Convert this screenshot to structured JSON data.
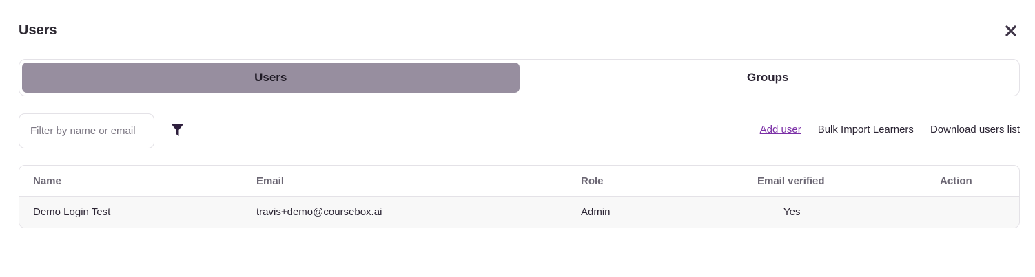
{
  "modal": {
    "title": "Users",
    "close_icon": "close-icon"
  },
  "tabs": [
    {
      "label": "Users",
      "active": true
    },
    {
      "label": "Groups",
      "active": false
    }
  ],
  "filter": {
    "placeholder": "Filter by name or email",
    "value": "",
    "icon": "filter-icon"
  },
  "actions": {
    "add_user": "Add user",
    "bulk_import": "Bulk Import Learners",
    "download": "Download users list"
  },
  "table": {
    "columns": [
      "Name",
      "Email",
      "Role",
      "Email verified",
      "Action"
    ],
    "rows": [
      {
        "name": "Demo Login Test",
        "email": "travis+demo@coursebox.ai",
        "role": "Admin",
        "verified": "Yes",
        "action": ""
      }
    ]
  },
  "colors": {
    "active_tab": "#978e9f",
    "link": "#7b2fa6",
    "icon": "#2e1f3d"
  }
}
